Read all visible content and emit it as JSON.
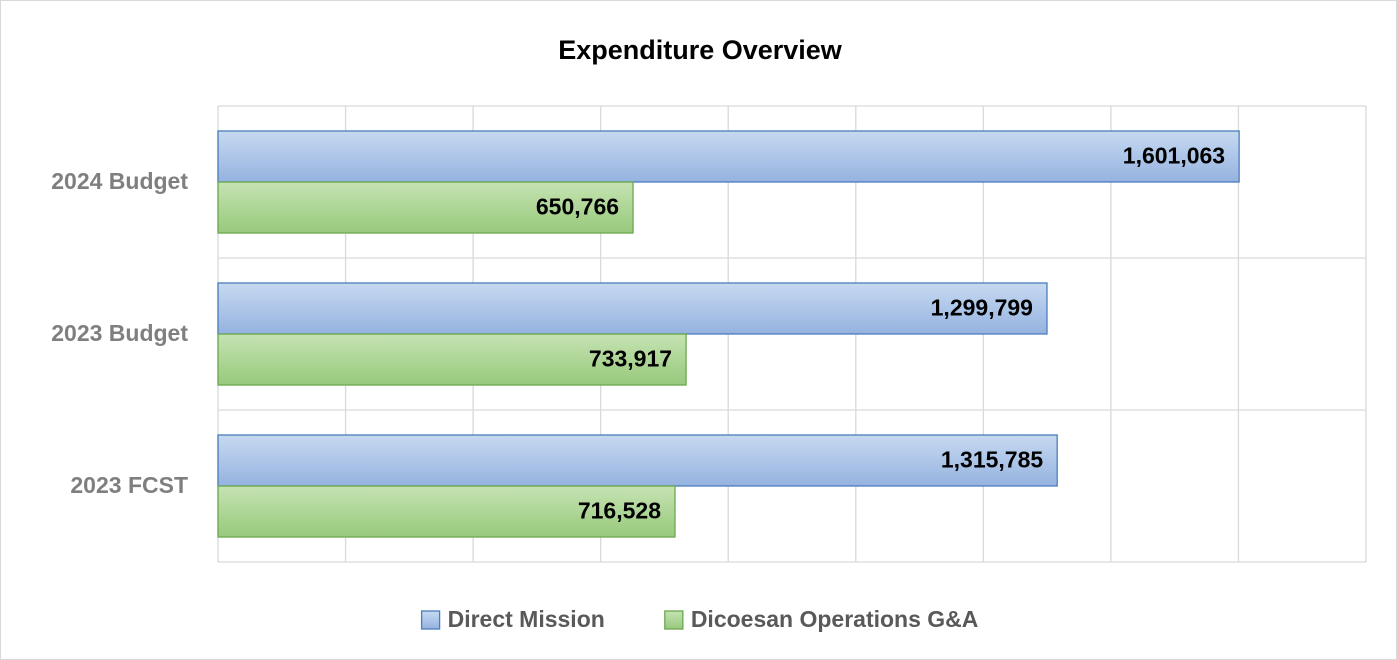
{
  "chart_data": {
    "type": "barh",
    "title": "Expenditure Overview",
    "categories": [
      "2024 Budget",
      "2023 Budget",
      "2023 FCST"
    ],
    "series": [
      {
        "name": "Direct Mission",
        "color": "#a7c2e8",
        "edge": "#4a7ebb",
        "values": [
          1601063,
          1299799,
          1315785
        ],
        "value_labels": [
          "1,601,063",
          "1,299,799",
          "1,315,785"
        ]
      },
      {
        "name": "Dicoesan Operations G&A",
        "color": "#a9d18e",
        "edge": "#6aa84f",
        "values": [
          650766,
          733917,
          716528
        ],
        "value_labels": [
          "650,766",
          "733,917",
          "716,528"
        ]
      }
    ],
    "xlim": [
      0,
      1800000
    ],
    "xticks": [
      0,
      200000,
      400000,
      600000,
      800000,
      1000000,
      1200000,
      1400000,
      1600000,
      1800000
    ],
    "grid": true,
    "legend": "bottom"
  }
}
